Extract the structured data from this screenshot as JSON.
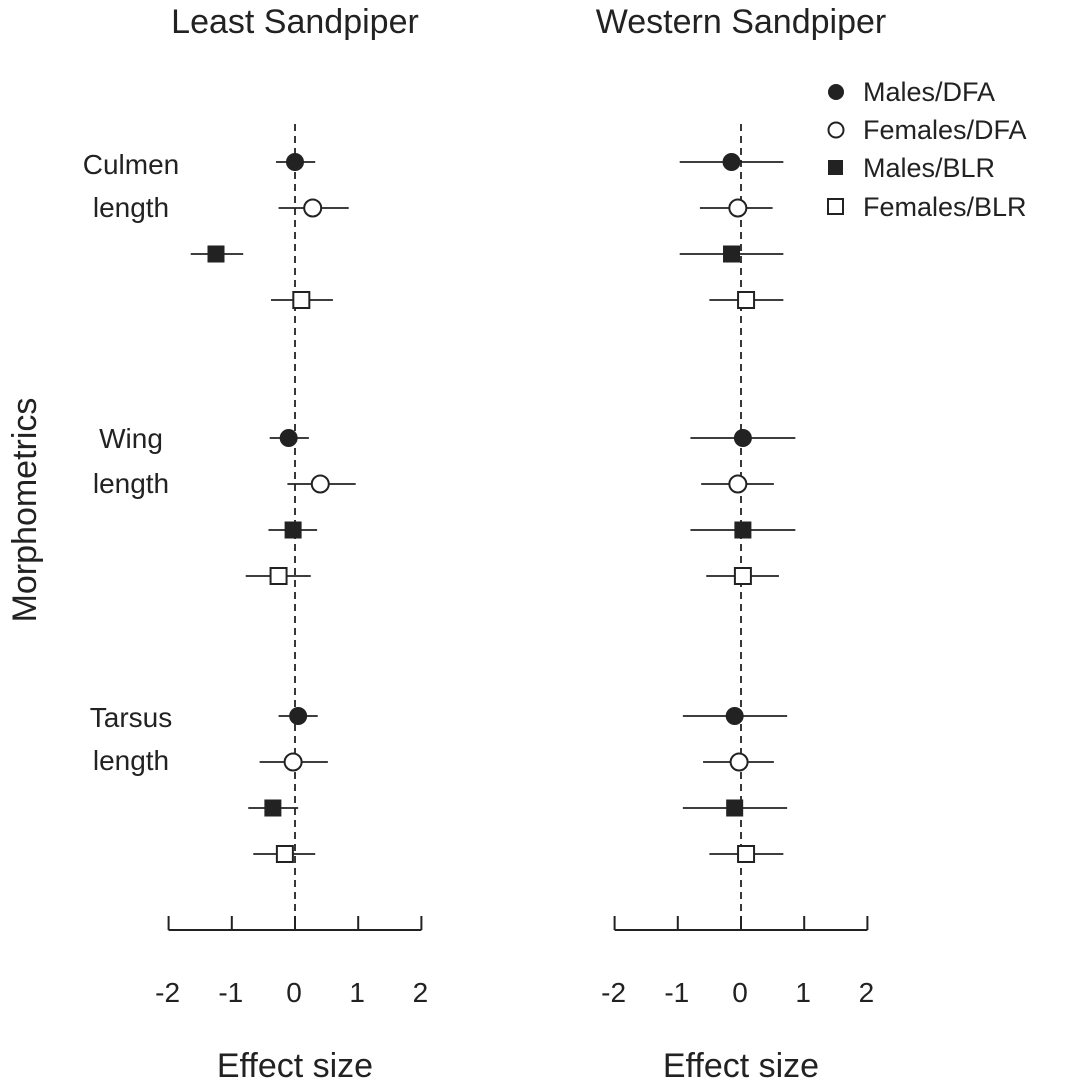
{
  "chart_data": [
    {
      "type": "forest",
      "title": "Least Sandpiper",
      "xlabel": "Effect size",
      "ylabel": "Morphometrics",
      "xlim": [
        -2,
        2
      ],
      "ticks": [
        -2,
        -1,
        0,
        1,
        2
      ],
      "tick_labels": [
        "-2",
        "-1",
        "0",
        "1",
        "2"
      ],
      "reference_line": 0,
      "groups": [
        {
          "label_lines": [
            "Culmen",
            "length"
          ],
          "points": [
            {
              "series": "Males/DFA",
              "estimate": 0.0,
              "lower": -0.3,
              "upper": 0.32
            },
            {
              "series": "Females/DFA",
              "estimate": 0.28,
              "lower": -0.26,
              "upper": 0.85
            },
            {
              "series": "Males/BLR",
              "estimate": -1.25,
              "lower": -1.65,
              "upper": -0.82
            },
            {
              "series": "Females/BLR",
              "estimate": 0.1,
              "lower": -0.38,
              "upper": 0.6
            }
          ]
        },
        {
          "label_lines": [
            "Wing",
            "length"
          ],
          "points": [
            {
              "series": "Males/DFA",
              "estimate": -0.1,
              "lower": -0.4,
              "upper": 0.22
            },
            {
              "series": "Females/DFA",
              "estimate": 0.4,
              "lower": -0.12,
              "upper": 0.96
            },
            {
              "series": "Males/BLR",
              "estimate": -0.03,
              "lower": -0.42,
              "upper": 0.35
            },
            {
              "series": "Females/BLR",
              "estimate": -0.26,
              "lower": -0.78,
              "upper": 0.25
            }
          ]
        },
        {
          "label_lines": [
            "Tarsus",
            "length"
          ],
          "points": [
            {
              "series": "Males/DFA",
              "estimate": 0.05,
              "lower": -0.26,
              "upper": 0.36
            },
            {
              "series": "Females/DFA",
              "estimate": -0.03,
              "lower": -0.56,
              "upper": 0.52
            },
            {
              "series": "Males/BLR",
              "estimate": -0.35,
              "lower": -0.74,
              "upper": 0.05
            },
            {
              "series": "Females/BLR",
              "estimate": -0.16,
              "lower": -0.66,
              "upper": 0.32
            }
          ]
        }
      ]
    },
    {
      "type": "forest",
      "title": "Western Sandpiper",
      "xlabel": "Effect size",
      "xlim": [
        -2,
        2
      ],
      "ticks": [
        -2,
        -1,
        0,
        1,
        2
      ],
      "tick_labels": [
        "-2",
        "-1",
        "0",
        "1",
        "2"
      ],
      "reference_line": 0,
      "groups": [
        {
          "points": [
            {
              "series": "Males/DFA",
              "estimate": -0.15,
              "lower": -0.97,
              "upper": 0.67
            },
            {
              "series": "Females/DFA",
              "estimate": -0.05,
              "lower": -0.65,
              "upper": 0.5
            },
            {
              "series": "Males/BLR",
              "estimate": -0.15,
              "lower": -0.97,
              "upper": 0.67
            },
            {
              "series": "Females/BLR",
              "estimate": 0.08,
              "lower": -0.5,
              "upper": 0.67
            }
          ]
        },
        {
          "points": [
            {
              "series": "Males/DFA",
              "estimate": 0.03,
              "lower": -0.8,
              "upper": 0.86
            },
            {
              "series": "Females/DFA",
              "estimate": -0.05,
              "lower": -0.63,
              "upper": 0.52
            },
            {
              "series": "Males/BLR",
              "estimate": 0.03,
              "lower": -0.8,
              "upper": 0.86
            },
            {
              "series": "Females/BLR",
              "estimate": 0.03,
              "lower": -0.55,
              "upper": 0.6
            }
          ]
        },
        {
          "points": [
            {
              "series": "Males/DFA",
              "estimate": -0.1,
              "lower": -0.92,
              "upper": 0.73
            },
            {
              "series": "Females/DFA",
              "estimate": -0.03,
              "lower": -0.6,
              "upper": 0.52
            },
            {
              "series": "Males/BLR",
              "estimate": -0.1,
              "lower": -0.92,
              "upper": 0.73
            },
            {
              "series": "Females/BLR",
              "estimate": 0.08,
              "lower": -0.5,
              "upper": 0.67
            }
          ]
        }
      ]
    }
  ],
  "legend": {
    "placement": "top-right",
    "entries": [
      {
        "label": "Males/DFA",
        "marker": "filled-circle"
      },
      {
        "label": "Females/DFA",
        "marker": "open-circle"
      },
      {
        "label": "Males/BLR",
        "marker": "filled-square"
      },
      {
        "label": "Females/BLR",
        "marker": "open-square"
      }
    ]
  },
  "colors": {
    "ink": "#222222",
    "background": "#ffffff"
  }
}
